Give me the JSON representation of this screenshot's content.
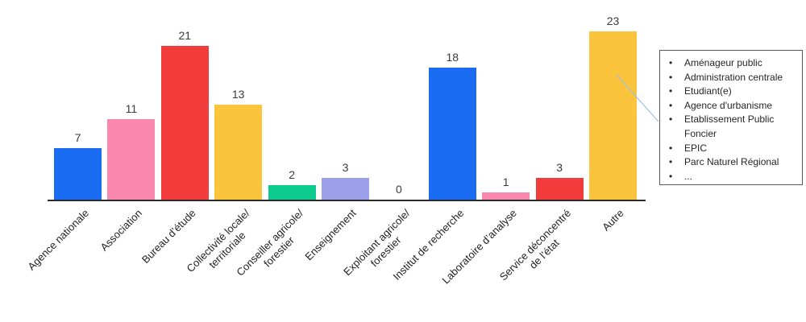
{
  "chart_data": {
    "type": "bar",
    "title": "",
    "xlabel": "",
    "ylabel": "",
    "ylim": [
      0,
      23
    ],
    "grid": false,
    "legend": false,
    "categories": [
      "Agence nationale",
      "Association",
      "Bureau d’étude",
      "Collectivité locale/\nterritoriale",
      "Conseiller agricole/\nforestier",
      "Enseignement",
      "Exploitant agricole/\nforestier",
      "Institut de recherche",
      "Laboratoire d’analyse",
      "Service déconcentré\nde l’état",
      "Autre"
    ],
    "values": [
      7,
      11,
      21,
      13,
      2,
      3,
      0,
      18,
      1,
      3,
      23
    ],
    "colors": [
      "#1A6DF3",
      "#FA87AD",
      "#F23C3C",
      "#FAC43D",
      "#0ECB8D",
      "#9CA0E9",
      null,
      "#1A6DF3",
      "#FA87AD",
      "#F23C3C",
      "#FAC43D"
    ],
    "axis_color": "#2b2b2b",
    "value_label_color": "#3a3a3a"
  },
  "annotation": {
    "bullet": "•",
    "items": [
      "Aménageur public",
      "Administration centrale",
      "Etudiant(e)",
      "Agence d'urbanisme",
      "Etablissement Public Foncier",
      "EPIC",
      "Parc Naturel Régional",
      "..."
    ],
    "border_color": "#595959",
    "connector_color": "#9DC3E6"
  }
}
